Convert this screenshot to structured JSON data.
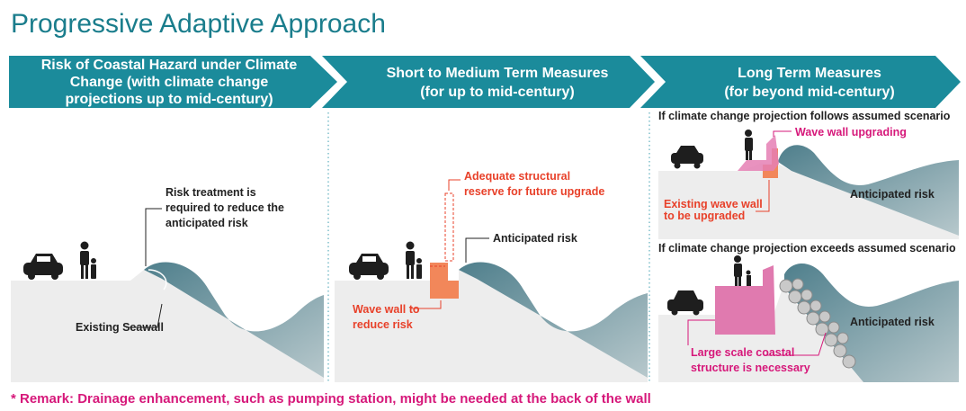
{
  "header": {
    "title": "Progressive Adaptive Approach"
  },
  "columns": [
    {
      "heading": [
        "Risk of Coastal Hazard under Climate",
        "Change (with climate change",
        "projections up to mid-century)"
      ],
      "labels": {
        "treatment": [
          "Risk treatment is",
          "required to reduce the",
          "anticipated risk"
        ],
        "seawall": "Existing Seawall"
      }
    },
    {
      "heading": [
        "Short to Medium Term Measures",
        "(for up to mid-century)"
      ],
      "labels": {
        "reserve": [
          "Adequate structural",
          "reserve for future upgrade"
        ],
        "risk": "Anticipated risk",
        "wall": [
          "Wave wall to",
          "reduce risk"
        ]
      }
    },
    {
      "heading": [
        "Long Term Measures",
        "(for beyond mid-century)"
      ],
      "scenarios": [
        {
          "condition": "If climate change projection follows assumed scenario",
          "upgrade": "Wave wall upgrading",
          "existing": [
            "Existing wave wall",
            "to be upgraded"
          ],
          "risk": "Anticipated risk"
        },
        {
          "condition": "If climate change projection exceeds assumed scenario",
          "risk": "Anticipated risk",
          "structure": [
            "Large scale coastal",
            "structure is necessary"
          ]
        }
      ]
    }
  ],
  "remark": "* Remark: Drainage enhancement, such as pumping station, might be needed at the back of the wall"
}
